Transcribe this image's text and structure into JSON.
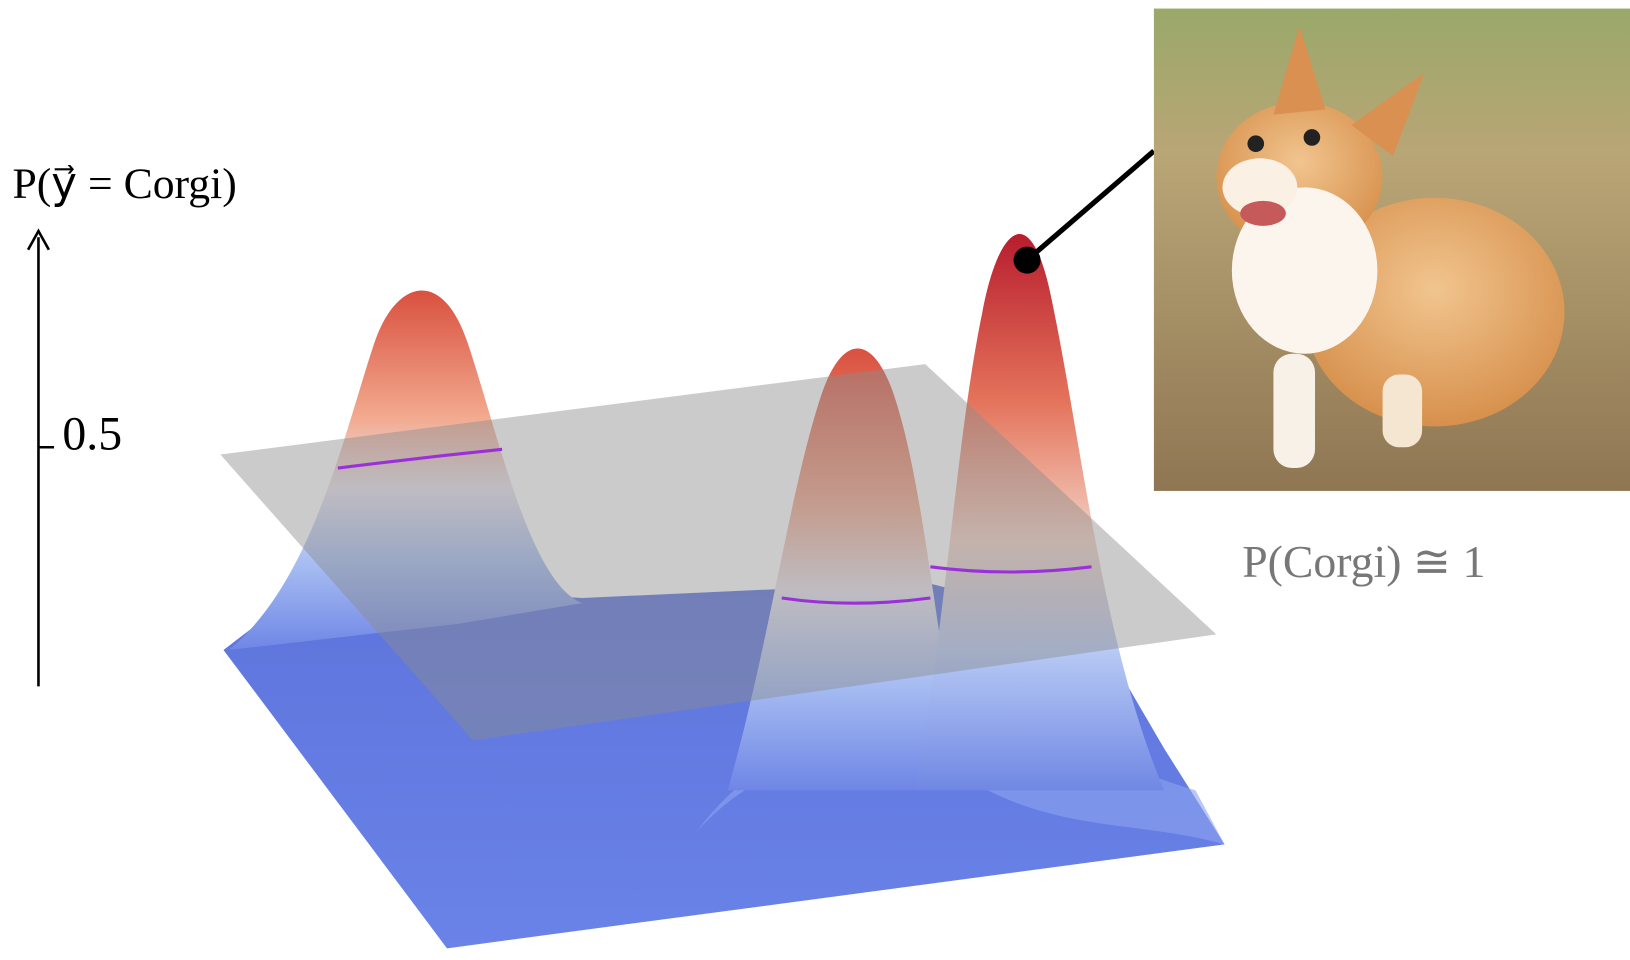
{
  "axis": {
    "label": "P(y⃗ = Corgi)",
    "tick": "0.5"
  },
  "annotation": "P(Corgi) ≅ 1"
}
